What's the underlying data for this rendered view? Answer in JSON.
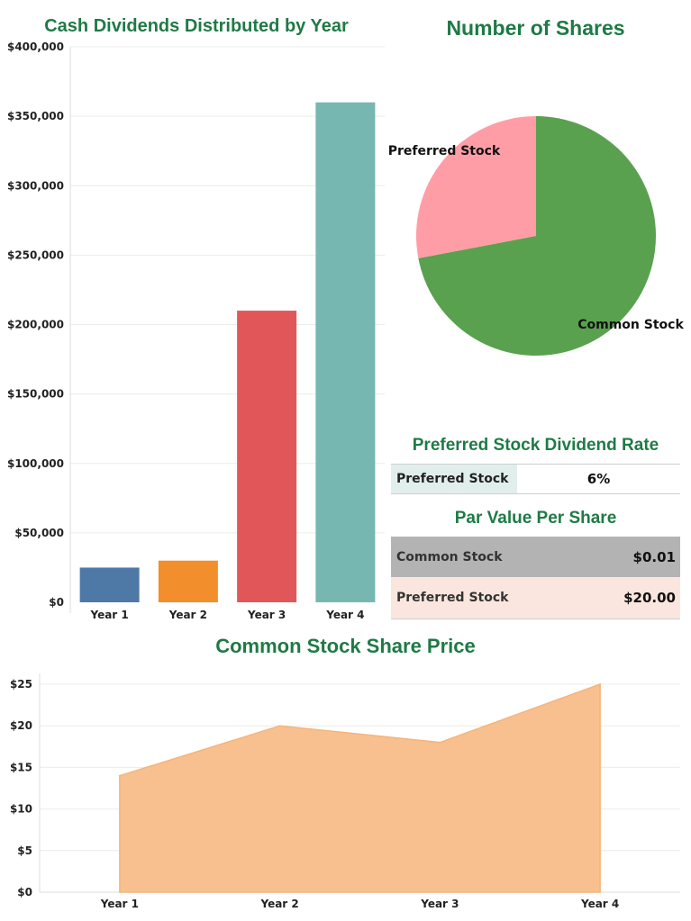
{
  "chart_data": [
    {
      "type": "bar",
      "title": "Cash Dividends Distributed by Year",
      "categories": [
        "Year 1",
        "Year 2",
        "Year 3",
        "Year 4"
      ],
      "values": [
        25000,
        30000,
        210000,
        360000
      ],
      "colors": [
        "#4e79a7",
        "#f28e2b",
        "#e15759",
        "#76b7b2"
      ],
      "ylim": [
        0,
        400000
      ],
      "yticks": [
        0,
        50000,
        100000,
        150000,
        200000,
        250000,
        300000,
        350000,
        400000
      ],
      "ytick_labels": [
        "$0",
        "$50,000",
        "$100,000",
        "$150,000",
        "$200,000",
        "$250,000",
        "$300,000",
        "$350,000",
        "$400,000"
      ],
      "grid": true
    },
    {
      "type": "pie",
      "title": "Number of Shares",
      "categories": [
        "Common Stock",
        "Preferred Stock"
      ],
      "values": [
        72,
        28
      ],
      "colors": [
        "#59a14f",
        "#ff9da7"
      ]
    },
    {
      "type": "table",
      "title": "Preferred Stock Dividend Rate",
      "rows": [
        {
          "label": "Preferred Stock",
          "value": "6%"
        }
      ]
    },
    {
      "type": "table",
      "title": "Par Value Per Share",
      "rows": [
        {
          "label": "Common Stock",
          "value": "$0.01"
        },
        {
          "label": "Preferred Stock",
          "value": "$20.00"
        }
      ]
    },
    {
      "type": "area",
      "title": "Common Stock Share Price",
      "categories": [
        "Year 1",
        "Year 2",
        "Year 3",
        "Year 4"
      ],
      "values": [
        14,
        20,
        18,
        25
      ],
      "color": "#f9c08f",
      "ylim": [
        0,
        25
      ],
      "yticks": [
        0,
        5,
        10,
        15,
        20,
        25
      ],
      "ytick_labels": [
        "$0",
        "$5",
        "$10",
        "$15",
        "$20",
        "$25"
      ],
      "grid": true
    }
  ]
}
